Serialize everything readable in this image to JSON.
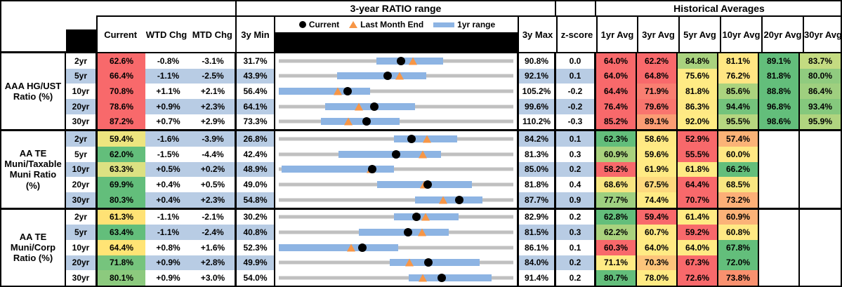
{
  "header": {
    "ratio_range_title": "3-year RATIO range",
    "historical_title": "Historical Averages",
    "col_current": "Current",
    "col_wtd": "WTD Chg",
    "col_mtd": "MTD Chg",
    "col_3y_min": "3y Min",
    "col_3y_max": "3y Max",
    "col_zscore": "z-score",
    "avg_cols": [
      "1yr Avg",
      "3yr Avg",
      "5yr Avg",
      "10yr Avg",
      "20yr Avg",
      "30yr Avg"
    ],
    "legend": {
      "current": "Current",
      "last_month": "Last Month End",
      "range": "1yr range"
    }
  },
  "colors": {
    "stripe_blue": "#B8CCE4",
    "range_bar_blue": "#8DB4E3",
    "track_gray": "#C0C0C0",
    "marker_orange": "#F79646",
    "marker_black": "#000000",
    "scale_red": "#F8696B",
    "scale_yellow": "#FFEB84",
    "scale_green": "#63BE7B"
  },
  "chart_data": {
    "type": "table",
    "title": "Muni ratio monitor: current levels, 3-year ranges (bullet charts) and historical averages",
    "groups": [
      {
        "label": [
          "AAA HG/UST",
          "Ratio (%)"
        ],
        "rows": [
          {
            "tenor": "2yr",
            "current": 62.6,
            "current_bg": "#F8696B",
            "wtd": -0.8,
            "mtd": -3.1,
            "min3y": 31.7,
            "max3y": 90.8,
            "z": 0.0,
            "last_month_end": 65.7,
            "range_1yr": [
              56.4,
              73.4
            ],
            "avgs": [
              {
                "v": 64.0,
                "bg": "#F8696B"
              },
              {
                "v": 62.2,
                "bg": "#F8696B"
              },
              {
                "v": 84.8,
                "bg": "#A9D27E"
              },
              {
                "v": 81.1,
                "bg": "#FFE783"
              },
              {
                "v": 89.1,
                "bg": "#63BE7B"
              },
              {
                "v": 83.7,
                "bg": "#C4DB81"
              }
            ]
          },
          {
            "tenor": "5yr",
            "current": 66.4,
            "current_bg": "#F8696B",
            "wtd": -1.1,
            "mtd": -2.5,
            "min3y": 43.9,
            "max3y": 92.1,
            "z": 0.1,
            "last_month_end": 68.9,
            "range_1yr": [
              56.0,
              74.3
            ],
            "avgs": [
              {
                "v": 64.0,
                "bg": "#F8696B"
              },
              {
                "v": 64.8,
                "bg": "#F8696B"
              },
              {
                "v": 75.6,
                "bg": "#FFEB84"
              },
              {
                "v": 76.2,
                "bg": "#FFE583"
              },
              {
                "v": 81.8,
                "bg": "#63BE7B"
              },
              {
                "v": 80.0,
                "bg": "#90CB7F"
              }
            ]
          },
          {
            "tenor": "10yr",
            "current": 70.8,
            "current_bg": "#F8696B",
            "wtd": 1.1,
            "mtd": 2.1,
            "min3y": 56.4,
            "max3y": 105.2,
            "z": -0.2,
            "last_month_end": 68.7,
            "range_1yr": [
              56.4,
              75.5
            ],
            "avgs": [
              {
                "v": 64.4,
                "bg": "#F8696B"
              },
              {
                "v": 71.9,
                "bg": "#F97E71"
              },
              {
                "v": 81.8,
                "bg": "#FFEB84"
              },
              {
                "v": 85.6,
                "bg": "#ABD37E"
              },
              {
                "v": 88.8,
                "bg": "#63BE7B"
              },
              {
                "v": 86.4,
                "bg": "#9FCF7F"
              }
            ]
          },
          {
            "tenor": "20yr",
            "current": 78.6,
            "current_bg": "#F8696B",
            "wtd": 0.9,
            "mtd": 2.3,
            "min3y": 64.1,
            "max3y": 99.6,
            "z": -0.2,
            "last_month_end": 76.3,
            "range_1yr": [
              71.1,
              84.8
            ],
            "avgs": [
              {
                "v": 76.4,
                "bg": "#F8696B"
              },
              {
                "v": 79.6,
                "bg": "#F9756E"
              },
              {
                "v": 86.3,
                "bg": "#FFE984"
              },
              {
                "v": 94.4,
                "bg": "#74C37C"
              },
              {
                "v": 96.8,
                "bg": "#63BE7B"
              },
              {
                "v": 93.4,
                "bg": "#85C87D"
              }
            ]
          },
          {
            "tenor": "30yr",
            "current": 87.2,
            "current_bg": "#F8696B",
            "wtd": 0.7,
            "mtd": 2.9,
            "min3y": 73.3,
            "max3y": 110.2,
            "z": -0.3,
            "last_month_end": 84.3,
            "range_1yr": [
              80.0,
              92.4
            ],
            "avgs": [
              {
                "v": 85.2,
                "bg": "#F8696B"
              },
              {
                "v": 89.1,
                "bg": "#FB9D74"
              },
              {
                "v": 92.0,
                "bg": "#FFEB84"
              },
              {
                "v": 95.5,
                "bg": "#B6D680"
              },
              {
                "v": 98.6,
                "bg": "#63BE7B"
              },
              {
                "v": 95.9,
                "bg": "#B0D47F"
              }
            ]
          }
        ]
      },
      {
        "label": [
          "AA TE",
          "Muni/Taxable",
          "Muni Ratio",
          "(%)"
        ],
        "rows": [
          {
            "tenor": "2yr",
            "current": 59.4,
            "current_bg": "#EDE57F",
            "wtd": -1.6,
            "mtd": -3.9,
            "min3y": 26.8,
            "max3y": 84.2,
            "z": 0.1,
            "last_month_end": 63.3,
            "range_1yr": [
              55.2,
              70.7
            ],
            "avgs": [
              {
                "v": 62.3,
                "bg": "#63BE7B"
              },
              {
                "v": 58.6,
                "bg": "#FFE984"
              },
              {
                "v": 52.9,
                "bg": "#F8696B"
              },
              {
                "v": 57.4,
                "bg": "#FBB377"
              },
              null,
              null
            ]
          },
          {
            "tenor": "5yr",
            "current": 62.0,
            "current_bg": "#63BE7B",
            "wtd": -1.5,
            "mtd": -4.4,
            "min3y": 42.4,
            "max3y": 81.3,
            "z": 0.3,
            "last_month_end": 66.4,
            "range_1yr": [
              52.4,
              69.5
            ],
            "avgs": [
              {
                "v": 60.9,
                "bg": "#A9D27E"
              },
              {
                "v": 59.6,
                "bg": "#FFEB84"
              },
              {
                "v": 55.5,
                "bg": "#F8696B"
              },
              {
                "v": 60.0,
                "bg": "#FFE883"
              },
              null,
              null
            ]
          },
          {
            "tenor": "10yr",
            "current": 63.3,
            "current_bg": "#DCE182",
            "wtd": 0.5,
            "mtd": 0.2,
            "min3y": 48.9,
            "max3y": 85.0,
            "z": 0.2,
            "last_month_end": 63.1,
            "range_1yr": [
              49.3,
              66.7
            ],
            "avgs": [
              {
                "v": 58.2,
                "bg": "#F8696B"
              },
              {
                "v": 61.9,
                "bg": "#FFEB84"
              },
              {
                "v": 61.8,
                "bg": "#FFEA84"
              },
              {
                "v": 66.2,
                "bg": "#63BE7B"
              },
              null,
              null
            ]
          },
          {
            "tenor": "20yr",
            "current": 69.9,
            "current_bg": "#63BE7B",
            "wtd": 0.4,
            "mtd": 0.5,
            "min3y": 49.0,
            "max3y": 81.8,
            "z": 0.4,
            "last_month_end": 69.4,
            "range_1yr": [
              62.8,
              76.2
            ],
            "avgs": [
              {
                "v": 68.6,
                "bg": "#F8E681"
              },
              {
                "v": 67.5,
                "bg": "#FDD97E"
              },
              {
                "v": 64.4,
                "bg": "#F8696B"
              },
              {
                "v": 68.5,
                "bg": "#F8E681"
              },
              null,
              null
            ]
          },
          {
            "tenor": "30yr",
            "current": 80.3,
            "current_bg": "#63BE7B",
            "wtd": 0.4,
            "mtd": 2.3,
            "min3y": 54.8,
            "max3y": 87.7,
            "z": 0.9,
            "last_month_end": 78.0,
            "range_1yr": [
              74.0,
              83.5
            ],
            "avgs": [
              {
                "v": 77.7,
                "bg": "#9ED080"
              },
              {
                "v": 74.4,
                "bg": "#FFEB84"
              },
              {
                "v": 70.7,
                "bg": "#F8696B"
              },
              {
                "v": 73.2,
                "bg": "#FCAF77"
              },
              null,
              null
            ]
          }
        ]
      },
      {
        "label": [
          "AA TE",
          "Muni/Corp",
          "Ratio (%)"
        ],
        "rows": [
          {
            "tenor": "2yr",
            "current": 61.3,
            "current_bg": "#FFE275",
            "wtd": -1.1,
            "mtd": -2.1,
            "min3y": 30.2,
            "max3y": 82.9,
            "z": 0.2,
            "last_month_end": 63.4,
            "range_1yr": [
              56.2,
              70.8
            ],
            "avgs": [
              {
                "v": 62.8,
                "bg": "#63BE7B"
              },
              {
                "v": 59.4,
                "bg": "#F8696B"
              },
              {
                "v": 61.4,
                "bg": "#FFEB84"
              },
              {
                "v": 60.9,
                "bg": "#FBB378"
              },
              null,
              null
            ]
          },
          {
            "tenor": "5yr",
            "current": 63.4,
            "current_bg": "#63BE7B",
            "wtd": -1.1,
            "mtd": -2.4,
            "min3y": 40.8,
            "max3y": 81.5,
            "z": 0.3,
            "last_month_end": 65.8,
            "range_1yr": [
              54.7,
              70.5
            ],
            "avgs": [
              {
                "v": 62.2,
                "bg": "#A9D27E"
              },
              {
                "v": 60.7,
                "bg": "#FFE984"
              },
              {
                "v": 59.2,
                "bg": "#F8696B"
              },
              {
                "v": 60.8,
                "bg": "#FFE984"
              },
              null,
              null
            ]
          },
          {
            "tenor": "10yr",
            "current": 64.4,
            "current_bg": "#FFE475",
            "wtd": 0.8,
            "mtd": 1.6,
            "min3y": 52.3,
            "max3y": 86.1,
            "z": 0.1,
            "last_month_end": 62.8,
            "range_1yr": [
              52.3,
              69.6
            ],
            "avgs": [
              {
                "v": 60.3,
                "bg": "#F8696B"
              },
              {
                "v": 64.0,
                "bg": "#FFEB84"
              },
              {
                "v": 64.0,
                "bg": "#FFEB84"
              },
              {
                "v": 67.8,
                "bg": "#63BE7B"
              },
              null,
              null
            ]
          },
          {
            "tenor": "20yr",
            "current": 71.8,
            "current_bg": "#76C47D",
            "wtd": 0.9,
            "mtd": 2.8,
            "min3y": 49.9,
            "max3y": 84.0,
            "z": 0.2,
            "last_month_end": 69.0,
            "range_1yr": [
              66.1,
              79.3
            ],
            "avgs": [
              {
                "v": 71.1,
                "bg": "#FFEB84"
              },
              {
                "v": 70.3,
                "bg": "#FCC47B"
              },
              {
                "v": 67.3,
                "bg": "#F8696B"
              },
              {
                "v": 72.0,
                "bg": "#63BE7B"
              },
              null,
              null
            ]
          },
          {
            "tenor": "30yr",
            "current": 80.1,
            "current_bg": "#8CCA7E",
            "wtd": 0.9,
            "mtd": 3.0,
            "min3y": 54.0,
            "max3y": 91.4,
            "z": 0.2,
            "last_month_end": 77.1,
            "range_1yr": [
              74.8,
              88.1
            ],
            "avgs": [
              {
                "v": 80.7,
                "bg": "#63BE7B"
              },
              {
                "v": 78.0,
                "bg": "#FFEB84"
              },
              {
                "v": 72.6,
                "bg": "#F8696B"
              },
              {
                "v": 73.8,
                "bg": "#F9916F"
              },
              null,
              null
            ]
          }
        ]
      }
    ]
  }
}
